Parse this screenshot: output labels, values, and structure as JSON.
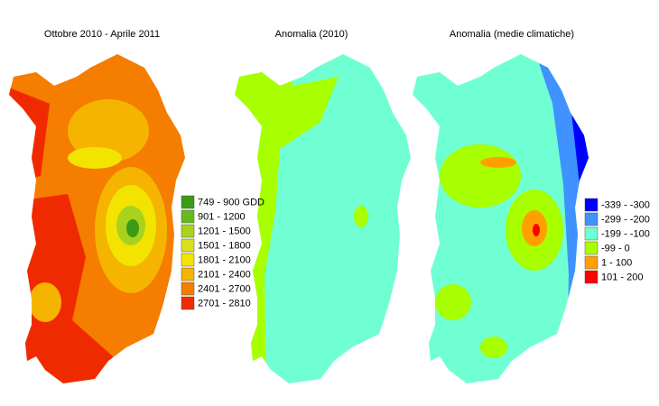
{
  "panels": [
    {
      "title": "Ottobre 2010 - Aprile 2011",
      "legend": [
        {
          "label": "749 - 900 GDD",
          "color": "#3c9a14"
        },
        {
          "label": "901 - 1200",
          "color": "#64bb1e"
        },
        {
          "label": "1201 - 1500",
          "color": "#a8d21e"
        },
        {
          "label": "1501 - 1800",
          "color": "#d9e01c"
        },
        {
          "label": "1801 - 2100",
          "color": "#f2e400"
        },
        {
          "label": "2101 - 2400",
          "color": "#f5b400"
        },
        {
          "label": "2401 - 2700",
          "color": "#f57d00"
        },
        {
          "label": "2701 - 2810",
          "color": "#f02a00"
        }
      ]
    },
    {
      "title": "Anomalia (2010)"
    },
    {
      "title": "Anomalia (medie climatiche)",
      "legend": [
        {
          "label": "-339 - -300",
          "color": "#0000ff"
        },
        {
          "label": "-299 - -200",
          "color": "#3f92ff"
        },
        {
          "label": "-199 - -100",
          "color": "#70ffd2"
        },
        {
          "label": "-99 - 0",
          "color": "#a8ff00"
        },
        {
          "label": "1 - 100",
          "color": "#ffa000"
        },
        {
          "label": "101 - 200",
          "color": "#ff0000"
        }
      ]
    }
  ]
}
